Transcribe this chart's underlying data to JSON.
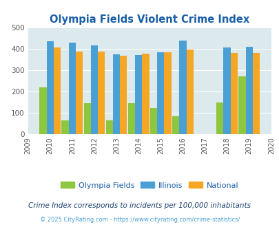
{
  "title": "Olympia Fields Violent Crime Index",
  "years": [
    2009,
    2010,
    2011,
    2012,
    2013,
    2014,
    2015,
    2016,
    2017,
    2018,
    2019,
    2020
  ],
  "bar_years": [
    2010,
    2011,
    2012,
    2013,
    2014,
    2015,
    2016,
    2018,
    2019
  ],
  "olympia_fields": [
    218,
    65,
    143,
    62,
    143,
    123,
    83,
    148,
    270
  ],
  "illinois": [
    434,
    428,
    415,
    373,
    369,
    384,
    438,
    405,
    409
  ],
  "national": [
    406,
    387,
    387,
    366,
    375,
    383,
    397,
    379,
    379
  ],
  "color_olympia": "#8dc63f",
  "color_illinois": "#4a9fd5",
  "color_national": "#f5a623",
  "ylim": [
    0,
    500
  ],
  "yticks": [
    0,
    100,
    200,
    300,
    400,
    500
  ],
  "bg_color": "#dce9ed",
  "subtitle": "Crime Index corresponds to incidents per 100,000 inhabitants",
  "footer": "© 2025 CityRating.com - https://www.cityrating.com/crime-statistics/",
  "legend_labels": [
    "Olympia Fields",
    "Illinois",
    "National"
  ],
  "title_color": "#1a5fa8",
  "subtitle_color": "#1a3f6f",
  "footer_color": "#4a9fd5"
}
